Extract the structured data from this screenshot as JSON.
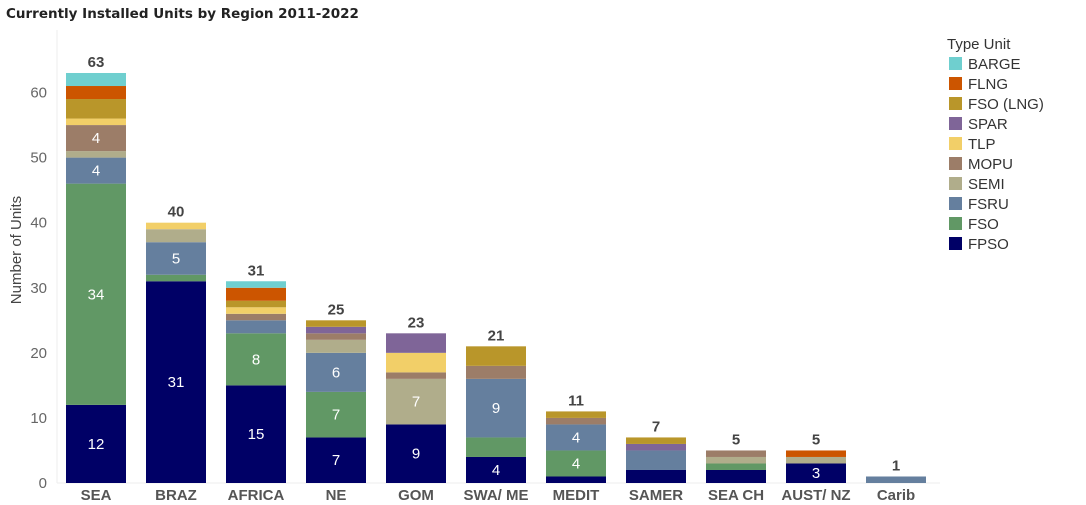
{
  "chart_data": {
    "type": "bar",
    "stacked": true,
    "title": "Currently Installed Units by Region 2011-2022",
    "xlabel": "",
    "ylabel": "Number of Units",
    "ylim": [
      0,
      63
    ],
    "yticks": [
      0,
      10,
      20,
      30,
      40,
      50,
      60
    ],
    "grid": false,
    "legend_title": "Type Unit",
    "legend_position": "right",
    "categories": [
      "SEA",
      "BRAZ",
      "AFRICA",
      "NE",
      "GOM",
      "SWA/ ME",
      "MEDIT",
      "SAMER",
      "SEA CH",
      "AUST/ NZ",
      "Carib"
    ],
    "totals": [
      63,
      40,
      31,
      25,
      23,
      21,
      11,
      7,
      5,
      5,
      1
    ],
    "series": [
      {
        "name": "FPSO",
        "color": "#000066",
        "values": [
          12,
          31,
          15,
          7,
          9,
          4,
          1,
          2,
          2,
          3,
          0
        ]
      },
      {
        "name": "FSO",
        "color": "#619865",
        "values": [
          34,
          1,
          8,
          7,
          0,
          3,
          4,
          0,
          1,
          0,
          0
        ]
      },
      {
        "name": "FSRU",
        "color": "#657f9e",
        "values": [
          4,
          5,
          2,
          6,
          0,
          9,
          4,
          3,
          0,
          0,
          1
        ]
      },
      {
        "name": "SEMI",
        "color": "#b0ad8b",
        "values": [
          1,
          2,
          0,
          2,
          7,
          0,
          0,
          0,
          1,
          1,
          0
        ]
      },
      {
        "name": "MOPU",
        "color": "#9c7d68",
        "values": [
          4,
          0,
          1,
          1,
          1,
          2,
          1,
          0,
          1,
          0,
          0
        ]
      },
      {
        "name": "TLP",
        "color": "#f2cf68",
        "values": [
          1,
          1,
          1,
          0,
          3,
          0,
          0,
          0,
          0,
          0,
          0
        ]
      },
      {
        "name": "SPAR",
        "color": "#7f6598",
        "values": [
          0,
          0,
          0,
          1,
          3,
          0,
          0,
          1,
          0,
          0,
          0
        ]
      },
      {
        "name": "FSO (LNG)",
        "color": "#b9962a",
        "values": [
          3,
          0,
          1,
          1,
          0,
          3,
          1,
          1,
          0,
          0,
          0
        ]
      },
      {
        "name": "FLNG",
        "color": "#cc5500",
        "values": [
          2,
          0,
          2,
          0,
          0,
          0,
          0,
          0,
          0,
          1,
          0
        ]
      },
      {
        "name": "BARGE",
        "color": "#6fcfcf",
        "values": [
          2,
          0,
          1,
          0,
          0,
          0,
          0,
          0,
          0,
          0,
          0
        ]
      }
    ],
    "data_labels": [
      {
        "category": "SEA",
        "series": "FPSO",
        "text": "12"
      },
      {
        "category": "SEA",
        "series": "FSO",
        "text": "34"
      },
      {
        "category": "SEA",
        "series": "FSRU",
        "text": "4"
      },
      {
        "category": "SEA",
        "series": "MOPU",
        "text": "4"
      },
      {
        "category": "BRAZ",
        "series": "FPSO",
        "text": "31"
      },
      {
        "category": "BRAZ",
        "series": "FSRU",
        "text": "5"
      },
      {
        "category": "AFRICA",
        "series": "FPSO",
        "text": "15"
      },
      {
        "category": "AFRICA",
        "series": "FSO",
        "text": "8"
      },
      {
        "category": "NE",
        "series": "FPSO",
        "text": "7"
      },
      {
        "category": "NE",
        "series": "FSO",
        "text": "7"
      },
      {
        "category": "NE",
        "series": "FSRU",
        "text": "6"
      },
      {
        "category": "GOM",
        "series": "FPSO",
        "text": "9"
      },
      {
        "category": "GOM",
        "series": "SEMI",
        "text": "7"
      },
      {
        "category": "SWA/ ME",
        "series": "FPSO",
        "text": "4"
      },
      {
        "category": "SWA/ ME",
        "series": "FSRU",
        "text": "9"
      },
      {
        "category": "MEDIT",
        "series": "FSO",
        "text": "4"
      },
      {
        "category": "MEDIT",
        "series": "FSRU",
        "text": "4"
      },
      {
        "category": "AUST/ NZ",
        "series": "FPSO",
        "text": "3"
      }
    ]
  }
}
